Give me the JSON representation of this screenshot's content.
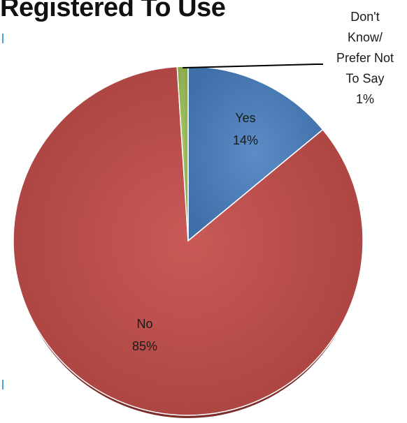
{
  "chart_data": {
    "type": "pie",
    "title": "Registered To Use",
    "slices": [
      {
        "label": "Yes",
        "percent_label": "14%",
        "value": 14,
        "color": "#4f81bd"
      },
      {
        "label": "No",
        "percent_label": "85%",
        "value": 85,
        "color": "#c0504d"
      },
      {
        "label": "Don't Know/ Prefer Not To Say",
        "label_lines": [
          "Don't",
          "Know/",
          "Prefer Not",
          "To Say"
        ],
        "percent_label": "1%",
        "value": 1,
        "color": "#9bbb59"
      }
    ]
  }
}
